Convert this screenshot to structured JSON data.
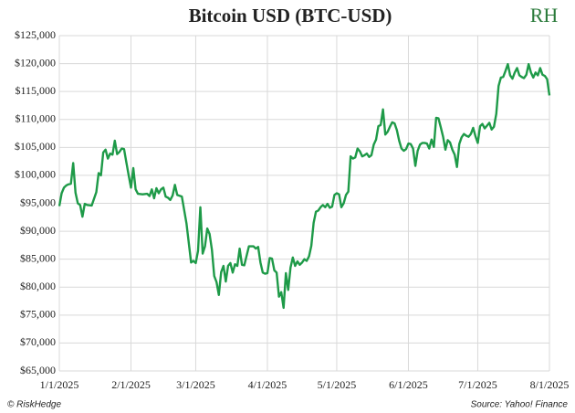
{
  "chart_data": {
    "type": "line",
    "title": "Bitcoin USD (BTC-USD)",
    "logo": "RH",
    "footer_left": "© RiskHedge",
    "footer_right": "Source: Yahoo! Finance",
    "grid": true,
    "xlim": [
      "1/1/2025",
      "8/1/2025"
    ],
    "xticks": [
      "1/1/2025",
      "2/1/2025",
      "3/1/2025",
      "4/1/2025",
      "5/1/2025",
      "6/1/2025",
      "7/1/2025",
      "8/1/2025"
    ],
    "ylim": [
      65000,
      125000
    ],
    "yticks": [
      {
        "value": 65000,
        "label": "$65,000"
      },
      {
        "value": 70000,
        "label": "$70,000"
      },
      {
        "value": 75000,
        "label": "$75,000"
      },
      {
        "value": 80000,
        "label": "$80,000"
      },
      {
        "value": 85000,
        "label": "$85,000"
      },
      {
        "value": 90000,
        "label": "$90,000"
      },
      {
        "value": 95000,
        "label": "$95,000"
      },
      {
        "value": 100000,
        "label": "$100,000"
      },
      {
        "value": 105000,
        "label": "$105,000"
      },
      {
        "value": 110000,
        "label": "$110,000"
      },
      {
        "value": 115000,
        "label": "$115,000"
      },
      {
        "value": 120000,
        "label": "$120,000"
      },
      {
        "value": 125000,
        "label": "$125,000"
      }
    ],
    "x": [
      "1/1/2025",
      "1/2/2025",
      "1/3/2025",
      "1/4/2025",
      "1/5/2025",
      "1/6/2025",
      "1/7/2025",
      "1/8/2025",
      "1/9/2025",
      "1/10/2025",
      "1/11/2025",
      "1/12/2025",
      "1/13/2025",
      "1/15/2025",
      "1/17/2025",
      "1/18/2025",
      "1/19/2025",
      "1/20/2025",
      "1/21/2025",
      "1/22/2025",
      "1/23/2025",
      "1/24/2025",
      "1/25/2025",
      "1/26/2025",
      "1/27/2025",
      "1/28/2025",
      "1/29/2025",
      "1/30/2025",
      "1/31/2025",
      "2/1/2025",
      "2/2/2025",
      "2/3/2025",
      "2/4/2025",
      "2/6/2025",
      "2/8/2025",
      "2/9/2025",
      "2/10/2025",
      "2/11/2025",
      "2/12/2025",
      "2/13/2025",
      "2/14/2025",
      "2/15/2025",
      "2/16/2025",
      "2/17/2025",
      "2/18/2025",
      "2/19/2025",
      "2/20/2025",
      "2/21/2025",
      "2/23/2025",
      "2/25/2025",
      "2/27/2025",
      "2/28/2025",
      "3/1/2025",
      "3/2/2025",
      "3/3/2025",
      "3/4/2025",
      "3/5/2025",
      "3/6/2025",
      "3/7/2025",
      "3/8/2025",
      "3/9/2025",
      "3/10/2025",
      "3/11/2025",
      "3/12/2025",
      "3/13/2025",
      "3/14/2025",
      "3/15/2025",
      "3/16/2025",
      "3/17/2025",
      "3/18/2025",
      "3/19/2025",
      "3/20/2025",
      "3/21/2025",
      "3/22/2025",
      "3/24/2025",
      "3/26/2025",
      "3/27/2025",
      "3/28/2025",
      "3/29/2025",
      "3/30/2025",
      "3/31/2025",
      "4/1/2025",
      "4/2/2025",
      "4/3/2025",
      "4/4/2025",
      "4/5/2025",
      "4/6/2025",
      "4/7/2025",
      "4/8/2025",
      "4/9/2025",
      "4/10/2025",
      "4/11/2025",
      "4/12/2025",
      "4/13/2025",
      "4/14/2025",
      "4/15/2025",
      "4/16/2025",
      "4/17/2025",
      "4/18/2025",
      "4/19/2025",
      "4/20/2025",
      "4/21/2025",
      "4/22/2025",
      "4/23/2025",
      "4/24/2025",
      "4/25/2025",
      "4/26/2025",
      "4/27/2025",
      "4/28/2025",
      "4/29/2025",
      "4/30/2025",
      "5/1/2025",
      "5/2/2025",
      "5/3/2025",
      "5/4/2025",
      "5/5/2025",
      "5/6/2025",
      "5/7/2025",
      "5/8/2025",
      "5/9/2025",
      "5/10/2025",
      "5/11/2025",
      "5/12/2025",
      "5/13/2025",
      "5/14/2025",
      "5/15/2025",
      "5/16/2025",
      "5/17/2025",
      "5/18/2025",
      "5/19/2025",
      "5/20/2025",
      "5/21/2025",
      "5/22/2025",
      "5/23/2025",
      "5/24/2025",
      "5/25/2025",
      "5/26/2025",
      "5/27/2025",
      "5/28/2025",
      "5/29/2025",
      "5/30/2025",
      "5/31/2025",
      "6/1/2025",
      "6/2/2025",
      "6/3/2025",
      "6/4/2025",
      "6/5/2025",
      "6/6/2025",
      "6/7/2025",
      "6/8/2025",
      "6/9/2025",
      "6/10/2025",
      "6/11/2025",
      "6/12/2025",
      "6/13/2025",
      "6/14/2025",
      "6/15/2025",
      "6/16/2025",
      "6/17/2025",
      "6/18/2025",
      "6/19/2025",
      "6/20/2025",
      "6/21/2025",
      "6/22/2025",
      "6/23/2025",
      "6/24/2025",
      "6/25/2025",
      "6/26/2025",
      "6/27/2025",
      "6/28/2025",
      "6/29/2025",
      "6/30/2025",
      "7/1/2025",
      "7/2/2025",
      "7/3/2025",
      "7/4/2025",
      "7/5/2025",
      "7/6/2025",
      "7/7/2025",
      "7/8/2025",
      "7/9/2025",
      "7/10/2025",
      "7/11/2025",
      "7/12/2025",
      "7/13/2025",
      "7/14/2025",
      "7/15/2025",
      "7/16/2025",
      "7/17/2025",
      "7/18/2025",
      "7/19/2025",
      "7/20/2025",
      "7/21/2025",
      "7/22/2025",
      "7/23/2025",
      "7/24/2025",
      "7/25/2025",
      "7/26/2025",
      "7/27/2025",
      "7/28/2025",
      "7/29/2025",
      "7/30/2025",
      "7/31/2025",
      "8/1/2025"
    ],
    "series": [
      {
        "name": "BTC-USD",
        "color": "#1e9a48",
        "values": [
          94500,
          96800,
          97800,
          98200,
          98400,
          98500,
          102200,
          96900,
          95000,
          94700,
          92600,
          94900,
          94700,
          94600,
          97000,
          100400,
          100000,
          104100,
          104600,
          103000,
          103900,
          103700,
          106200,
          103800,
          104200,
          104800,
          104700,
          102300,
          100000,
          97800,
          101300,
          97500,
          96700,
          96600,
          96700,
          96300,
          97500,
          95900,
          97700,
          96800,
          97500,
          97800,
          96200,
          96000,
          95600,
          96400,
          98300,
          96500,
          96200,
          91400,
          84400,
          84700,
          84300,
          86500,
          94300,
          86000,
          87300,
          90500,
          89500,
          86700,
          82000,
          80900,
          78600,
          82700,
          83800,
          81000,
          83800,
          84300,
          82600,
          84100,
          83800,
          86900,
          84000,
          83900,
          87300,
          87300,
          86900,
          87200,
          84400,
          82600,
          82400,
          82500,
          85200,
          85100,
          83000,
          82600,
          78300,
          79100,
          76300,
          82500,
          79500,
          83500,
          85300,
          83800,
          84600,
          84000,
          84400,
          85000,
          84700,
          85500,
          87400,
          91500,
          93500,
          93700,
          94300,
          94700,
          94300,
          94900,
          94200,
          94400,
          96500,
          96800,
          96600,
          94300,
          95000,
          96500,
          97100,
          103400,
          103000,
          103200,
          104800,
          104300,
          103400,
          103600,
          103900,
          103300,
          103600,
          105500,
          106400,
          108800,
          109000,
          111800,
          107300,
          107800,
          108700,
          109500,
          109300,
          108100,
          106200,
          104800,
          104400,
          104700,
          105700,
          105600,
          104800,
          101700,
          104400,
          105500,
          105800,
          105800,
          105700,
          104800,
          106400,
          105100,
          110300,
          110200,
          108600,
          106900,
          104600,
          106300,
          105900,
          104600,
          103700,
          101500,
          105600,
          106800,
          107400,
          107100,
          106900,
          107400,
          108500,
          107000,
          105800,
          108800,
          109200,
          108400,
          108900,
          109400,
          108200,
          108700,
          111000,
          116000,
          117500,
          117600,
          118700,
          119900,
          117900,
          117300,
          118400,
          119200,
          117900,
          117600,
          117400,
          118000,
          119900,
          118400,
          117500,
          118400,
          117900,
          119200,
          118000,
          117800,
          117200,
          114300
        ]
      }
    ]
  }
}
